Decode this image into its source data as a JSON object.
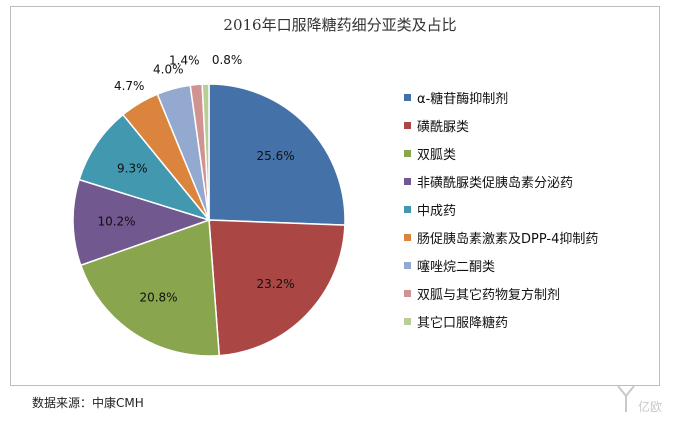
{
  "chart_data": {
    "type": "pie",
    "title": "2016年口服降糖药细分亚类及占比",
    "start": "12 o'clock, clockwise",
    "slices": [
      {
        "label": "α-糖苷酶抑制剂",
        "value": 25.6,
        "display": "25.6%",
        "color": "#4472a8"
      },
      {
        "label": "磺酰脲类",
        "value": 23.2,
        "display": "23.2%",
        "color": "#aa4644"
      },
      {
        "label": "双胍类",
        "value": 20.8,
        "display": "20.8%",
        "color": "#89a54e"
      },
      {
        "label": "非磺酰脲类促胰岛素分泌药",
        "value": 10.2,
        "display": "10.2%",
        "color": "#71588f"
      },
      {
        "label": "中成药",
        "value": 9.3,
        "display": "9.3%",
        "color": "#4198af"
      },
      {
        "label": "肠促胰岛素激素及DPP-4抑制药",
        "value": 4.7,
        "display": "4.7%",
        "color": "#db843d"
      },
      {
        "label": "噻唑烷二酮类",
        "value": 4.0,
        "display": "4.0%",
        "color": "#93a9cf"
      },
      {
        "label": "双胍与其它药物复方制剂",
        "value": 1.4,
        "display": "1.4%",
        "color": "#d19392"
      },
      {
        "label": "其它口服降糖药",
        "value": 0.8,
        "display": "0.8%",
        "color": "#b9cd96"
      }
    ],
    "legend_position": "right"
  },
  "source_text": "数据来源：中康CMH",
  "watermark_text": "亿欧"
}
